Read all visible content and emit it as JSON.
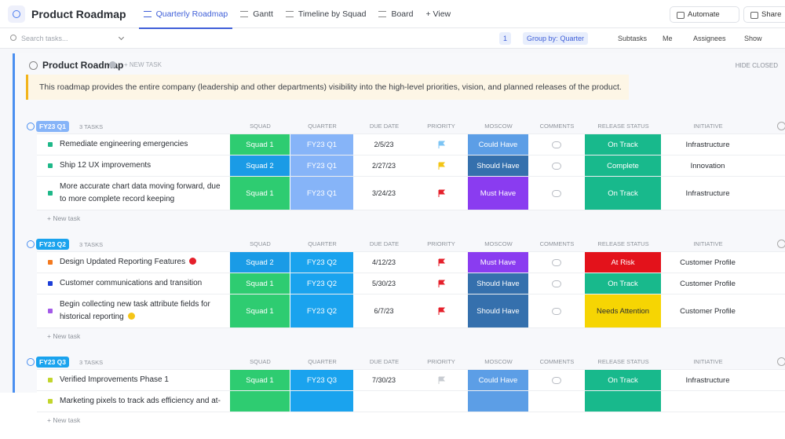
{
  "header": {
    "title": "Product Roadmap",
    "tabs": [
      "Quarterly Roadmap",
      "Gantt",
      "Timeline by Squad",
      "Board",
      "+ View"
    ],
    "actions": [
      "Automate",
      "Share"
    ]
  },
  "toolbar": {
    "search_placeholder": "Search tasks...",
    "filter_count": "1",
    "group_by_label": "Group by:",
    "group_by_value": "Quarter",
    "buttons": [
      "Subtasks",
      "Me",
      "Assignees",
      "Show"
    ]
  },
  "list": {
    "title": "Product Roadmap",
    "new_task": "+ NEW TASK",
    "hide_closed": "HIDE CLOSED",
    "description": "This roadmap provides the entire company (leadership and other departments) visibility into the high-level priorities, vision, and planned releases of the product."
  },
  "columns": [
    "SQUAD",
    "QUARTER",
    "DUE DATE",
    "PRIORITY",
    "MOSCOW",
    "COMMENTS",
    "RELEASE STATUS",
    "INITIATIVE"
  ],
  "groups": [
    {
      "name": "FY23 Q1",
      "count": "3 TASKS",
      "color": "#86b4f8",
      "add_task": "+ New task",
      "tasks": [
        {
          "name": "Remediate engineering emergencies",
          "bullet": "#1fb889",
          "squad": "Squad 1",
          "quarter": "FY23 Q1",
          "due": "2/5/23",
          "flag": "#7cc4f4",
          "moscow": "Could Have",
          "status": "On Track",
          "initiative": "Infrastructure"
        },
        {
          "name": "Ship 12 UX improvements",
          "bullet": "#1fb889",
          "squad": "Squad 2",
          "quarter": "FY23 Q1",
          "due": "2/27/23",
          "flag": "#f3c515",
          "moscow": "Should Have",
          "status": "Complete",
          "initiative": "Innovation"
        },
        {
          "name": "More accurate chart data moving forward, due to more complete record keeping",
          "bullet": "#1fb889",
          "squad": "Squad 1",
          "quarter": "FY23 Q1",
          "due": "3/24/23",
          "flag": "#e5202b",
          "moscow": "Must Have",
          "status": "On Track",
          "initiative": "Infrastructure"
        }
      ]
    },
    {
      "name": "FY23 Q2",
      "count": "3 TASKS",
      "color": "#1aa3ee",
      "add_task": "+ New task",
      "tasks": [
        {
          "name": "Design Updated Reporting Features",
          "bullet": "#f47a1f",
          "icon": "#e5202b",
          "squad": "Squad 2",
          "quarter": "FY23 Q2",
          "due": "4/12/23",
          "flag": "#e5202b",
          "moscow": "Must Have",
          "status": "At Risk",
          "initiative": "Customer Profile"
        },
        {
          "name": "Customer communications and transition",
          "bullet": "#1d3fd8",
          "squad": "Squad 1",
          "quarter": "FY23 Q2",
          "due": "5/30/23",
          "flag": "#e5202b",
          "moscow": "Should Have",
          "status": "On Track",
          "initiative": "Customer Profile"
        },
        {
          "name": "Begin collecting new task attribute fields for historical reporting",
          "bullet": "#a35ae8",
          "icon": "#f5c518",
          "squad": "Squad 1",
          "quarter": "FY23 Q2",
          "due": "6/7/23",
          "flag": "#e5202b",
          "moscow": "Should Have",
          "status": "Needs Attention",
          "initiative": "Customer Profile"
        }
      ]
    },
    {
      "name": "FY23 Q3",
      "count": "3 TASKS",
      "color": "#1aa3ee",
      "add_task": "+ New task",
      "tasks": [
        {
          "name": "Verified Improvements Phase 1",
          "bullet": "#c2d52c",
          "squad": "Squad 1",
          "quarter": "FY23 Q3",
          "due": "7/30/23",
          "flag": "#c8ccd2",
          "moscow": "Could Have",
          "status": "On Track",
          "initiative": "Infrastructure"
        },
        {
          "name": "Marketing pixels to track ads efficiency and at-",
          "bullet": "#c2d52c"
        }
      ]
    }
  ]
}
